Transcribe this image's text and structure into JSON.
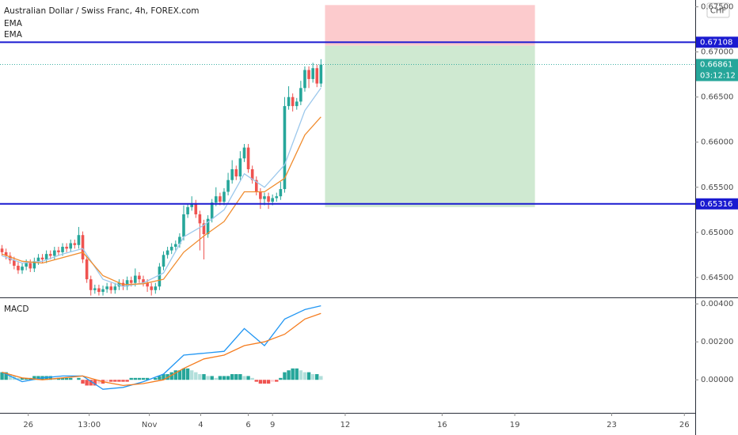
{
  "chart_data": [
    {
      "type": "candlestick",
      "title": "Australian Dollar / Swiss Franc, 4h, FOREX.com",
      "currency": "CHF",
      "xlim": [
        -0.5,
        171.7
      ],
      "ylim": [
        0.64288,
        0.67576
      ],
      "yticks": [
        {
          "value": 0.675,
          "label": "0.67500"
        },
        {
          "value": 0.67,
          "label": "0.67000"
        },
        {
          "value": 0.665,
          "label": "0.66500"
        },
        {
          "value": 0.66,
          "label": "0.66000"
        },
        {
          "value": 0.655,
          "label": "0.65500"
        },
        {
          "value": 0.65,
          "label": "0.65000"
        },
        {
          "value": 0.645,
          "label": "0.64500"
        }
      ],
      "xticks": [
        {
          "value": 6.5,
          "label": "26"
        },
        {
          "value": 21.6,
          "label": "13:00"
        },
        {
          "value": 36.5,
          "label": "Nov"
        },
        {
          "value": 49.2,
          "label": "4"
        },
        {
          "value": 61,
          "label": "6"
        },
        {
          "value": 67,
          "label": "9"
        },
        {
          "value": 85,
          "label": "12"
        },
        {
          "value": 109,
          "label": "16"
        },
        {
          "value": 127,
          "label": "19"
        },
        {
          "value": 151,
          "label": "23"
        },
        {
          "value": 169,
          "label": "26"
        }
      ],
      "grid": false,
      "up_color": "#26a69a",
      "down_color": "#ef5350",
      "ohlc": [
        [
          0.6482,
          0.6486,
          0.6474,
          0.6478
        ],
        [
          0.6478,
          0.6482,
          0.647,
          0.6474
        ],
        [
          0.6474,
          0.6478,
          0.6465,
          0.6469
        ],
        [
          0.6469,
          0.6473,
          0.6459,
          0.6463
        ],
        [
          0.6463,
          0.6467,
          0.6454,
          0.6458
        ],
        [
          0.6458,
          0.6466,
          0.6454,
          0.6462
        ],
        [
          0.6462,
          0.647,
          0.6458,
          0.6466
        ],
        [
          0.6466,
          0.647,
          0.6456,
          0.646
        ],
        [
          0.646,
          0.6472,
          0.6456,
          0.6468
        ],
        [
          0.6468,
          0.6476,
          0.6464,
          0.6472
        ],
        [
          0.6472,
          0.6476,
          0.6466,
          0.647
        ],
        [
          0.647,
          0.648,
          0.6466,
          0.6476
        ],
        [
          0.6476,
          0.648,
          0.647,
          0.6474
        ],
        [
          0.6474,
          0.6484,
          0.647,
          0.648
        ],
        [
          0.648,
          0.6484,
          0.6474,
          0.6478
        ],
        [
          0.6478,
          0.6488,
          0.6474,
          0.6484
        ],
        [
          0.6484,
          0.6488,
          0.6478,
          0.6482
        ],
        [
          0.6482,
          0.6492,
          0.6478,
          0.6488
        ],
        [
          0.6488,
          0.6492,
          0.6482,
          0.6486
        ],
        [
          0.6486,
          0.6506,
          0.6482,
          0.6497
        ],
        [
          0.6497,
          0.6501,
          0.6466,
          0.647
        ],
        [
          0.647,
          0.6474,
          0.6444,
          0.6448
        ],
        [
          0.6448,
          0.6452,
          0.643,
          0.6436
        ],
        [
          0.6436,
          0.6442,
          0.6432,
          0.6438
        ],
        [
          0.6438,
          0.6442,
          0.643,
          0.6434
        ],
        [
          0.6434,
          0.6441,
          0.643,
          0.6437
        ],
        [
          0.6437,
          0.6444,
          0.6433,
          0.644
        ],
        [
          0.644,
          0.6444,
          0.6432,
          0.6436
        ],
        [
          0.6436,
          0.6444,
          0.6432,
          0.644
        ],
        [
          0.644,
          0.6448,
          0.6436,
          0.6444
        ],
        [
          0.6444,
          0.6448,
          0.6436,
          0.644
        ],
        [
          0.644,
          0.6451,
          0.6436,
          0.6447
        ],
        [
          0.6447,
          0.6451,
          0.644,
          0.6444
        ],
        [
          0.6444,
          0.646,
          0.644,
          0.6452
        ],
        [
          0.6452,
          0.6456,
          0.6444,
          0.6448
        ],
        [
          0.6448,
          0.6452,
          0.644,
          0.6444
        ],
        [
          0.6444,
          0.6448,
          0.6434,
          0.644
        ],
        [
          0.644,
          0.6444,
          0.643,
          0.6436
        ],
        [
          0.6436,
          0.6444,
          0.6432,
          0.644
        ],
        [
          0.644,
          0.6466,
          0.6436,
          0.6462
        ],
        [
          0.6462,
          0.6479,
          0.6458,
          0.6475
        ],
        [
          0.6475,
          0.6484,
          0.6471,
          0.648
        ],
        [
          0.648,
          0.6488,
          0.6476,
          0.6484
        ],
        [
          0.6484,
          0.6491,
          0.648,
          0.6487
        ],
        [
          0.6487,
          0.6499,
          0.6483,
          0.6495
        ],
        [
          0.6495,
          0.653,
          0.6491,
          0.652
        ],
        [
          0.652,
          0.6532,
          0.6516,
          0.6528
        ],
        [
          0.6528,
          0.654,
          0.6524,
          0.6532
        ],
        [
          0.6532,
          0.6536,
          0.6516,
          0.652
        ],
        [
          0.652,
          0.6524,
          0.648,
          0.651
        ],
        [
          0.651,
          0.6514,
          0.647,
          0.6498
        ],
        [
          0.6498,
          0.6519,
          0.6494,
          0.6515
        ],
        [
          0.6515,
          0.6537,
          0.6511,
          0.6533
        ],
        [
          0.6533,
          0.655,
          0.6529,
          0.654
        ],
        [
          0.654,
          0.6544,
          0.653,
          0.6534
        ],
        [
          0.6534,
          0.6549,
          0.653,
          0.6545
        ],
        [
          0.6545,
          0.6566,
          0.6541,
          0.6558
        ],
        [
          0.6558,
          0.658,
          0.6554,
          0.657
        ],
        [
          0.657,
          0.6574,
          0.6558,
          0.6562
        ],
        [
          0.6562,
          0.659,
          0.6558,
          0.6582
        ],
        [
          0.6582,
          0.6598,
          0.6578,
          0.6594
        ],
        [
          0.6594,
          0.6598,
          0.6566,
          0.657
        ],
        [
          0.657,
          0.6574,
          0.6554,
          0.6558
        ],
        [
          0.6558,
          0.6562,
          0.6541,
          0.6545
        ],
        [
          0.6545,
          0.6549,
          0.6526,
          0.6537
        ],
        [
          0.6537,
          0.6544,
          0.653,
          0.654
        ],
        [
          0.654,
          0.6544,
          0.6526,
          0.6534
        ],
        [
          0.6534,
          0.6542,
          0.653,
          0.6538
        ],
        [
          0.6538,
          0.6544,
          0.6534,
          0.654
        ],
        [
          0.654,
          0.6556,
          0.6536,
          0.6548
        ],
        [
          0.6548,
          0.665,
          0.6544,
          0.664
        ],
        [
          0.664,
          0.6662,
          0.6636,
          0.665
        ],
        [
          0.665,
          0.6654,
          0.6634,
          0.664
        ],
        [
          0.664,
          0.6649,
          0.6636,
          0.6645
        ],
        [
          0.6645,
          0.6668,
          0.6641,
          0.666
        ],
        [
          0.666,
          0.6684,
          0.6656,
          0.668
        ],
        [
          0.668,
          0.6684,
          0.666,
          0.667
        ],
        [
          0.667,
          0.6688,
          0.6666,
          0.6682
        ],
        [
          0.6682,
          0.6686,
          0.6661,
          0.6665
        ],
        [
          0.6665,
          0.6692,
          0.6661,
          0.6686
        ]
      ],
      "series": [
        {
          "name": "EMA",
          "color": "#9cc8ec",
          "x": [
            0,
            5,
            10,
            15,
            20,
            25,
            30,
            35,
            40,
            45,
            50,
            55,
            60,
            65,
            70,
            75,
            79
          ],
          "values": [
            0.6474,
            0.6466,
            0.6468,
            0.6476,
            0.6482,
            0.6448,
            0.644,
            0.6444,
            0.6455,
            0.6495,
            0.6508,
            0.6525,
            0.6565,
            0.655,
            0.6575,
            0.6635,
            0.666
          ]
        },
        {
          "name": "EMA",
          "color": "#f08c2e",
          "x": [
            0,
            5,
            10,
            15,
            20,
            25,
            30,
            35,
            40,
            45,
            50,
            55,
            60,
            65,
            70,
            75,
            79
          ],
          "values": [
            0.6476,
            0.6468,
            0.6466,
            0.6472,
            0.6478,
            0.6452,
            0.6442,
            0.6443,
            0.6448,
            0.6478,
            0.6496,
            0.6512,
            0.6545,
            0.6545,
            0.656,
            0.6608,
            0.6628
          ]
        }
      ],
      "price_lines": [
        {
          "value": 0.67108,
          "color": "#1a1ad0"
        },
        {
          "value": 0.65316,
          "color": "#1a1ad0"
        }
      ],
      "last_price": {
        "value": 0.66861,
        "countdown": "03:12:12",
        "color": "#26a69a"
      },
      "position": {
        "start": 80,
        "end": 132,
        "stop": 0.6752,
        "entry": 0.6707,
        "target": 0.6528,
        "stop_color": "#fccbcd",
        "target_color": "#cfe9d1"
      }
    },
    {
      "type": "macd",
      "title": "MACD",
      "ylim": [
        -0.00174,
        0.00426
      ],
      "yticks": [
        {
          "value": 0.004,
          "label": "0.00400"
        },
        {
          "value": 0.002,
          "label": "0.00200"
        },
        {
          "value": 0,
          "label": "0.00000"
        }
      ],
      "series": [
        {
          "color": "#2196f3",
          "x": [
            0,
            5,
            10,
            15,
            20,
            25,
            30,
            35,
            40,
            45,
            50,
            55,
            60,
            65,
            70,
            75,
            79
          ],
          "values": [
            0.0004,
            -0.0001,
            0.0001,
            0.0002,
            0.0002,
            -0.0005,
            -0.0004,
            -0.0001,
            0.0003,
            0.0013,
            0.0014,
            0.0015,
            0.0027,
            0.0018,
            0.0032,
            0.0037,
            0.0039
          ]
        },
        {
          "color": "#f57c1f",
          "x": [
            0,
            5,
            10,
            15,
            20,
            25,
            30,
            35,
            40,
            45,
            50,
            55,
            60,
            65,
            70,
            75,
            79
          ],
          "values": [
            0.0004,
            0.0001,
            0,
            0.0001,
            0.0002,
            -0.0001,
            -0.0003,
            -0.0002,
            0,
            0.0006,
            0.0011,
            0.0013,
            0.0018,
            0.002,
            0.0024,
            0.0032,
            0.0035
          ]
        }
      ],
      "histogram": [
        0.0004,
        0.0004,
        0.0003,
        0.0002,
        0.0001,
        0.0001,
        0.0001,
        0.0001,
        0.0002,
        0.0002,
        0.0002,
        0.0002,
        0.0002,
        0.0001,
        0.0001,
        0.0001,
        0.0001,
        0.0001,
        0,
        0.0001,
        -0.0002,
        -0.0003,
        -0.0003,
        -0.0003,
        -0.0002,
        -0.0002,
        -0.0001,
        -0.0001,
        -0.0001,
        -0.0001,
        -0.0001,
        -0.0001,
        0.0001,
        0.0001,
        0.0001,
        0.0001,
        0.0001,
        0,
        0.0001,
        0.0002,
        0.0003,
        0.0003,
        0.0004,
        0.0005,
        0.0005,
        0.0006,
        0.0006,
        0.0005,
        0.0004,
        0.0003,
        0.0003,
        0.0002,
        0.0002,
        0.0001,
        0.0002,
        0.0002,
        0.0002,
        0.0003,
        0.0003,
        0.0003,
        0.0002,
        0.0002,
        0.0001,
        -0.0001,
        -0.0002,
        -0.0002,
        -0.0002,
        -0.0001,
        -0.0001,
        0.0001,
        0.0004,
        0.0005,
        0.0006,
        0.0006,
        0.0005,
        0.0004,
        0.0004,
        0.0003,
        0.0003,
        0.0002
      ]
    }
  ]
}
